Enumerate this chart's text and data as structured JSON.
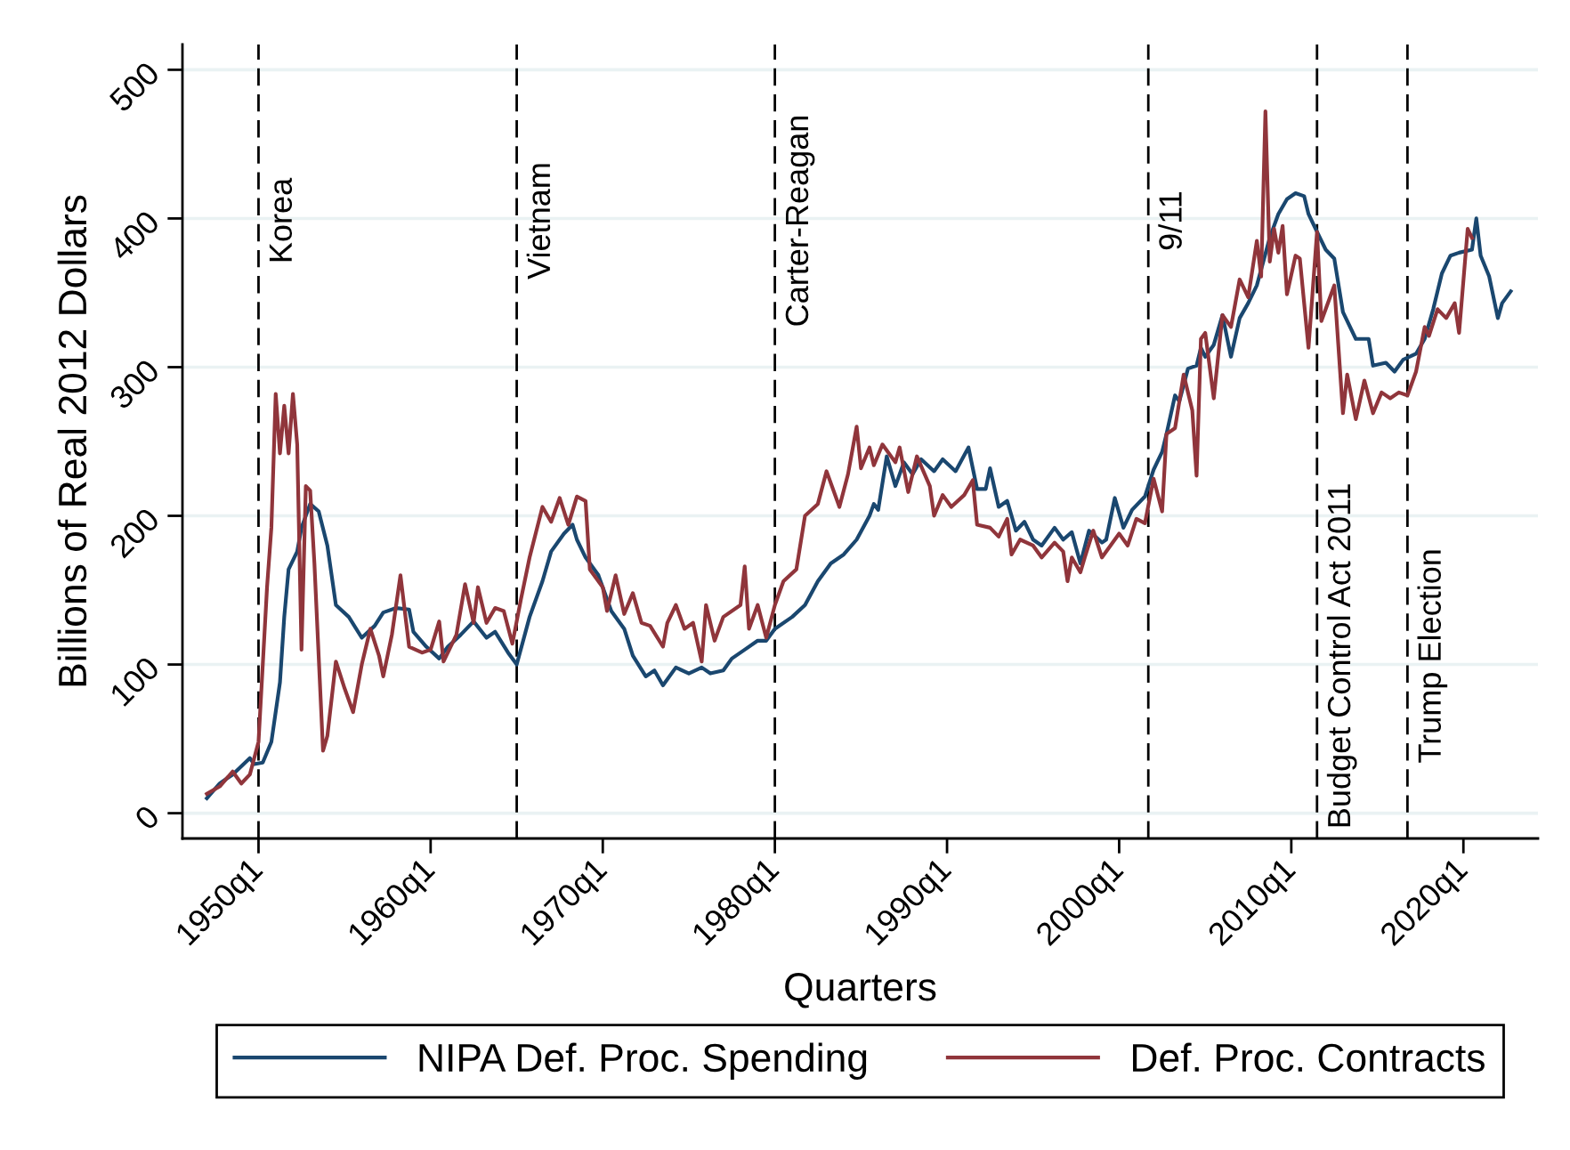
{
  "chart_data": {
    "type": "line",
    "xlabel": "Quarters",
    "ylabel": "Billions of Real 2012 Dollars",
    "xlim": [
      "1945-08",
      "2024-05"
    ],
    "xticks": [
      {
        "value": "1950-01",
        "label": "1950q1"
      },
      {
        "value": "1960-01",
        "label": "1960q1"
      },
      {
        "value": "1970-01",
        "label": "1970q1"
      },
      {
        "value": "1980-01",
        "label": "1980q1"
      },
      {
        "value": "1990-01",
        "label": "1990q1"
      },
      {
        "value": "2000-01",
        "label": "2000q1"
      },
      {
        "value": "2010-01",
        "label": "2010q1"
      },
      {
        "value": "2020-01",
        "label": "2020q1"
      }
    ],
    "ylim": [
      -17,
      517
    ],
    "yticks": [
      0,
      100,
      200,
      300,
      400,
      500
    ],
    "grid": "y",
    "legend": "bottom",
    "series": [
      {
        "name": "NIPA Def. Proc. Spending",
        "color": "#1a476f",
        "x": [
          "1947-01",
          "1947-10",
          "1948-07",
          "1949-07",
          "1949-10",
          "1950-04",
          "1950-10",
          "1951-04",
          "1951-07",
          "1951-10",
          "1952-04",
          "1952-07",
          "1953-01",
          "1953-07",
          "1954-01",
          "1954-07",
          "1955-04",
          "1956-01",
          "1956-10",
          "1957-04",
          "1958-01",
          "1958-10",
          "1959-01",
          "1959-10",
          "1960-07",
          "1961-01",
          "1961-10",
          "1962-07",
          "1963-04",
          "1963-10",
          "1964-07",
          "1965-01",
          "1965-10",
          "1966-07",
          "1967-01",
          "1967-10",
          "1968-04",
          "1968-07",
          "1969-01",
          "1969-10",
          "1970-07",
          "1971-04",
          "1971-10",
          "1972-07",
          "1973-01",
          "1973-07",
          "1974-04",
          "1975-01",
          "1975-10",
          "1976-04",
          "1977-01",
          "1977-07",
          "1978-04",
          "1979-01",
          "1979-07",
          "1980-01",
          "1981-01",
          "1981-10",
          "1982-07",
          "1983-04",
          "1984-01",
          "1984-10",
          "1985-07",
          "1985-10",
          "1986-01",
          "1986-07",
          "1987-01",
          "1987-07",
          "1988-01",
          "1988-07",
          "1989-04",
          "1989-10",
          "1990-07",
          "1991-04",
          "1991-10",
          "1992-04",
          "1992-07",
          "1993-01",
          "1993-07",
          "1994-01",
          "1994-07",
          "1995-01",
          "1995-07",
          "1996-04",
          "1996-10",
          "1997-04",
          "1997-10",
          "1998-04",
          "1999-01",
          "1999-04",
          "1999-10",
          "2000-04",
          "2000-10",
          "2001-07",
          "2002-01",
          "2002-07",
          "2002-10",
          "2003-04",
          "2003-07",
          "2004-01",
          "2004-07",
          "2004-10",
          "2005-01",
          "2005-07",
          "2006-01",
          "2006-07",
          "2007-01",
          "2007-07",
          "2008-01",
          "2008-10",
          "2009-04",
          "2009-10",
          "2010-04",
          "2010-10",
          "2011-01",
          "2011-07",
          "2012-01",
          "2012-07",
          "2013-01",
          "2013-10",
          "2014-07",
          "2014-10",
          "2015-07",
          "2016-01",
          "2016-07",
          "2017-04",
          "2017-10",
          "2018-04",
          "2018-10",
          "2019-04",
          "2019-10",
          "2020-07",
          "2020-10",
          "2021-01",
          "2021-07",
          "2022-01",
          "2022-04",
          "2022-10"
        ],
        "values": [
          10,
          20,
          26,
          37,
          33,
          34,
          48,
          88,
          132,
          164,
          176,
          192,
          208,
          203,
          180,
          140,
          132,
          118,
          126,
          135,
          138,
          137,
          122,
          112,
          104,
          112,
          120,
          129,
          118,
          122,
          108,
          100,
          132,
          156,
          176,
          188,
          194,
          184,
          172,
          160,
          136,
          124,
          106,
          92,
          96,
          86,
          98,
          94,
          98,
          94,
          96,
          104,
          110,
          116,
          116,
          124,
          132,
          140,
          156,
          168,
          174,
          184,
          200,
          208,
          204,
          240,
          220,
          236,
          228,
          238,
          230,
          238,
          230,
          246,
          218,
          218,
          232,
          206,
          210,
          190,
          196,
          184,
          180,
          192,
          184,
          189,
          168,
          190,
          182,
          184,
          212,
          192,
          204,
          213,
          231,
          243,
          255,
          281,
          277,
          299,
          301,
          313,
          307,
          315,
          335,
          307,
          333,
          343,
          355,
          387,
          403,
          413,
          417,
          415,
          403,
          391,
          379,
          373,
          337,
          319,
          319,
          301,
          303,
          297,
          305,
          309,
          319,
          339,
          363,
          375,
          377,
          379,
          400,
          375,
          361,
          333,
          343,
          351
        ]
      },
      {
        "name": "Def. Proc. Contracts",
        "color": "#90353b",
        "x": [
          "1947-01",
          "1947-10",
          "1948-07",
          "1949-01",
          "1949-07",
          "1950-01",
          "1950-07",
          "1950-10",
          "1951-01",
          "1951-04",
          "1951-07",
          "1951-10",
          "1952-01",
          "1952-04",
          "1952-07",
          "1952-10",
          "1953-01",
          "1953-04",
          "1953-10",
          "1954-01",
          "1954-07",
          "1955-01",
          "1955-07",
          "1956-01",
          "1956-07",
          "1957-01",
          "1957-04",
          "1957-10",
          "1958-04",
          "1958-10",
          "1959-07",
          "1960-01",
          "1960-07",
          "1960-10",
          "1961-07",
          "1962-01",
          "1962-07",
          "1962-10",
          "1963-04",
          "1963-10",
          "1964-04",
          "1964-10",
          "1965-04",
          "1965-10",
          "1966-07",
          "1967-01",
          "1967-07",
          "1968-01",
          "1968-07",
          "1969-01",
          "1969-04",
          "1970-01",
          "1970-04",
          "1970-10",
          "1971-04",
          "1971-10",
          "1972-04",
          "1972-10",
          "1973-07",
          "1973-10",
          "1974-04",
          "1974-10",
          "1975-04",
          "1975-10",
          "1976-01",
          "1976-07",
          "1977-01",
          "1978-01",
          "1978-04",
          "1978-07",
          "1979-01",
          "1979-07",
          "1980-01",
          "1980-07",
          "1981-04",
          "1981-10",
          "1982-07",
          "1983-01",
          "1983-10",
          "1984-04",
          "1984-10",
          "1985-01",
          "1985-07",
          "1985-10",
          "1986-04",
          "1987-01",
          "1987-04",
          "1987-10",
          "1988-04",
          "1989-01",
          "1989-04",
          "1989-10",
          "1990-04",
          "1991-01",
          "1991-07",
          "1991-10",
          "1992-07",
          "1993-01",
          "1993-07",
          "1993-10",
          "1994-04",
          "1995-01",
          "1995-07",
          "1996-04",
          "1996-10",
          "1997-01",
          "1997-04",
          "1997-10",
          "1998-01",
          "1998-07",
          "1999-01",
          "1999-07",
          "2000-01",
          "2000-07",
          "2001-01",
          "2001-07",
          "2002-01",
          "2002-07",
          "2002-10",
          "2003-04",
          "2003-10",
          "2004-04",
          "2004-07",
          "2004-10",
          "2005-01",
          "2005-07",
          "2006-01",
          "2006-07",
          "2006-10",
          "2007-01",
          "2007-07",
          "2008-01",
          "2008-04",
          "2008-07",
          "2008-10",
          "2009-01",
          "2009-04",
          "2009-07",
          "2009-10",
          "2010-04",
          "2010-07",
          "2011-01",
          "2011-07",
          "2011-10",
          "2012-04",
          "2012-07",
          "2013-01",
          "2013-04",
          "2013-10",
          "2014-04",
          "2014-10",
          "2015-04",
          "2015-10",
          "2016-04",
          "2016-10",
          "2017-04",
          "2017-10",
          "2018-01",
          "2018-07",
          "2019-01",
          "2019-07",
          "2019-10",
          "2020-04",
          "2020-07"
        ],
        "values": [
          13,
          18,
          28,
          20,
          26,
          48,
          152,
          192,
          282,
          242,
          274,
          242,
          282,
          248,
          110,
          220,
          217,
          168,
          42,
          52,
          102,
          84,
          68,
          100,
          124,
          106,
          92,
          120,
          160,
          112,
          108,
          110,
          129,
          102,
          120,
          154,
          128,
          152,
          128,
          138,
          136,
          114,
          144,
          172,
          206,
          196,
          212,
          194,
          213,
          210,
          164,
          152,
          136,
          160,
          134,
          148,
          128,
          126,
          112,
          128,
          140,
          124,
          128,
          102,
          140,
          116,
          132,
          140,
          166,
          124,
          140,
          118,
          140,
          156,
          164,
          200,
          208,
          230,
          206,
          228,
          260,
          232,
          246,
          234,
          248,
          236,
          246,
          216,
          240,
          220,
          200,
          214,
          206,
          214,
          224,
          194,
          192,
          186,
          198,
          174,
          184,
          180,
          172,
          182,
          176,
          156,
          172,
          162,
          172,
          190,
          172,
          180,
          188,
          180,
          198,
          195,
          225,
          203,
          255,
          259,
          295,
          271,
          227,
          319,
          323,
          279,
          335,
          327,
          343,
          359,
          347,
          385,
          361,
          472,
          371,
          393,
          377,
          395,
          349,
          375,
          373,
          313,
          391,
          331,
          347,
          355,
          269,
          295,
          265,
          291,
          269,
          283,
          279,
          283,
          281,
          297,
          327,
          321,
          339,
          333,
          343,
          323,
          393,
          387
        ]
      }
    ],
    "ref_lines": [
      {
        "axis": "x",
        "value": "1950-01",
        "label": "Korea",
        "color": "#000000",
        "line_style": "dashed"
      },
      {
        "axis": "x",
        "value": "1965-01",
        "label": "Vietnam",
        "color": "#000000",
        "line_style": "dashed"
      },
      {
        "axis": "x",
        "value": "1980-01",
        "label": "Carter-Reagan",
        "color": "#000000",
        "line_style": "dashed"
      },
      {
        "axis": "x",
        "value": "2001-09-11",
        "label": "9/11",
        "color": "#000000",
        "line_style": "dashed"
      },
      {
        "axis": "x",
        "value": "2011-07",
        "label": "Budget Control Act 2011",
        "color": "#000000",
        "line_style": "dashed"
      },
      {
        "axis": "x",
        "value": "2016-10",
        "label": "Trump Election",
        "color": "#000000",
        "line_style": "dashed"
      }
    ]
  }
}
